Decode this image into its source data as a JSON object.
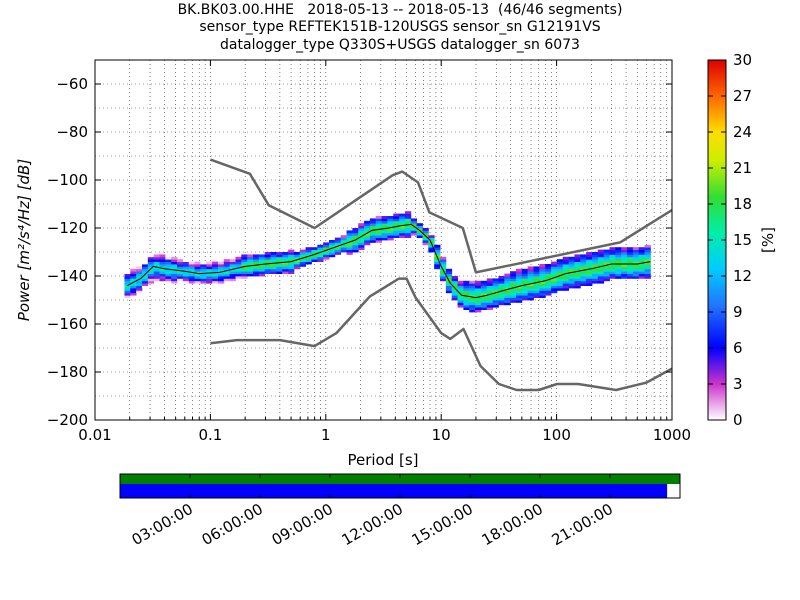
{
  "title_lines": [
    "BK.BK03.00.HHE   2018-05-13 -- 2018-05-13  (46/46 segments)",
    "sensor_type REFTEK151B-120USGS sensor_sn G12191VS",
    "datalogger_type Q330S+USGS datalogger_sn 6073"
  ],
  "chart_data": {
    "type": "heatmap",
    "xlabel": "Period [s]",
    "ylabel": "Power [m²/s⁴/Hz] [dB]",
    "x_scale": "log",
    "xlim": [
      0.01,
      1000
    ],
    "ylim": [
      -200,
      -50
    ],
    "x_ticks": [
      0.01,
      0.1,
      1,
      10,
      100,
      1000
    ],
    "x_tick_labels": [
      "0.01",
      "0.1",
      "1",
      "10",
      "100",
      "1000"
    ],
    "y_ticks": [
      -200,
      -180,
      -160,
      -140,
      -120,
      -100,
      -80,
      -60
    ],
    "y_tick_labels": [
      "−200",
      "−180",
      "−160",
      "−140",
      "−120",
      "−100",
      "−80",
      "−60"
    ],
    "grid": true,
    "colorbar": {
      "label": "[%]",
      "range": [
        0,
        30
      ],
      "ticks": [
        0,
        3,
        6,
        9,
        12,
        15,
        18,
        21,
        24,
        27,
        30
      ]
    },
    "nhnm": {
      "name": "NHNM",
      "x": [
        0.1,
        0.22,
        0.32,
        0.8,
        3.8,
        4.6,
        6.3,
        7.9,
        15.4,
        20,
        354.8,
        1000
      ],
      "y": [
        -91.5,
        -97.4,
        -110.5,
        -120,
        -98,
        -96.5,
        -101,
        -113.5,
        -120,
        -138.5,
        -126,
        -112.5
      ]
    },
    "nlnm": {
      "name": "NLNM",
      "x": [
        0.1,
        0.17,
        0.4,
        0.8,
        1.24,
        2.4,
        4.3,
        5,
        6,
        10,
        12,
        15.6,
        21.9,
        31.6,
        45,
        70,
        101,
        154,
        328,
        600,
        1000
      ],
      "y": [
        -168,
        -166.7,
        -166.7,
        -169.2,
        -163.7,
        -148.6,
        -141.1,
        -141.1,
        -149,
        -163.8,
        -166.2,
        -162.1,
        -177.5,
        -185,
        -187.5,
        -187.5,
        -185,
        -185,
        -187.5,
        -184.4,
        -178.6
      ]
    },
    "mode_line": {
      "x": [
        0.019,
        0.025,
        0.032,
        0.04,
        0.06,
        0.08,
        0.12,
        0.2,
        0.3,
        0.5,
        0.8,
        1.2,
        1.8,
        2.5,
        3.5,
        4.5,
        5.5,
        6.5,
        8,
        10,
        12,
        15,
        20,
        25,
        35,
        50,
        80,
        120,
        200,
        300,
        500,
        650
      ],
      "y": [
        -144,
        -141,
        -136,
        -137,
        -138,
        -139,
        -138.5,
        -136,
        -135,
        -134,
        -131,
        -128,
        -125,
        -121,
        -120,
        -119,
        -118.5,
        -121,
        -125,
        -136,
        -143,
        -148,
        -149,
        -148,
        -146,
        -144,
        -142,
        -139,
        -137,
        -135,
        -135,
        -134
      ]
    },
    "segments": {
      "total": 46,
      "used": 46
    },
    "timeline_tick_labels": [
      "03:00:00",
      "06:00:00",
      "09:00:00",
      "12:00:00",
      "15:00:00",
      "18:00:00",
      "21:00:00"
    ],
    "timeline_coverage": {
      "green": 1.0,
      "blue": 0.977
    },
    "colors": {
      "model_curves": "#666666",
      "mode_line": "#000000",
      "timeline_green": "#007f00",
      "timeline_blue": "#0000ff"
    }
  }
}
